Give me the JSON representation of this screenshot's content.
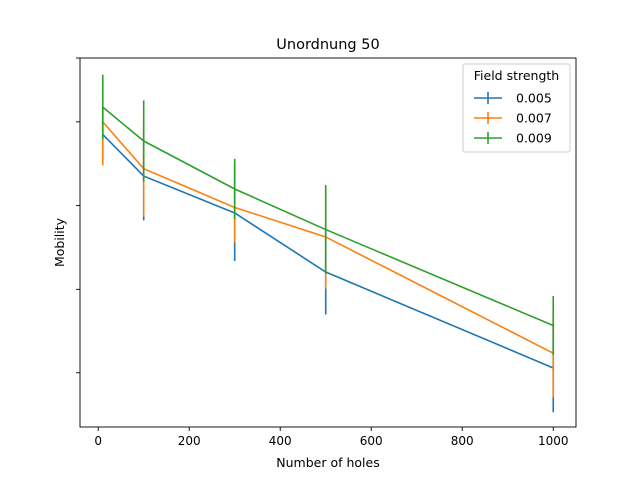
{
  "chart_data": {
    "type": "line",
    "title": "Unordnung 50",
    "xlabel": "Number of holes",
    "ylabel": "Mobility",
    "xlim": [
      -40,
      1050
    ],
    "ylim": [
      0,
      1
    ],
    "x_ticks": [
      0,
      200,
      400,
      600,
      800,
      1000
    ],
    "y_ticks": [
      0.147,
      0.373,
      0.6,
      0.827,
      1.0
    ],
    "y_tick_labels_shown": false,
    "grid": false,
    "legend": {
      "title": "Field strength",
      "placement": "top-right"
    },
    "x": [
      10,
      100,
      300,
      500,
      1000
    ],
    "series": [
      {
        "name": "0.005",
        "color": "#1f77b4",
        "values": [
          0.793,
          0.68,
          0.58,
          0.42,
          0.16
        ],
        "errors": [
          0.07,
          0.12,
          0.13,
          0.115,
          0.12
        ]
      },
      {
        "name": "0.007",
        "color": "#ff7f0e",
        "values": [
          0.827,
          0.7,
          0.595,
          0.515,
          0.2
        ],
        "errors": [
          0.118,
          0.13,
          0.095,
          0.14,
          0.12
        ]
      },
      {
        "name": "0.009",
        "color": "#2ca02c",
        "values": [
          0.867,
          0.775,
          0.645,
          0.535,
          0.275
        ],
        "errors": [
          0.088,
          0.11,
          0.082,
          0.12,
          0.08
        ]
      }
    ]
  }
}
